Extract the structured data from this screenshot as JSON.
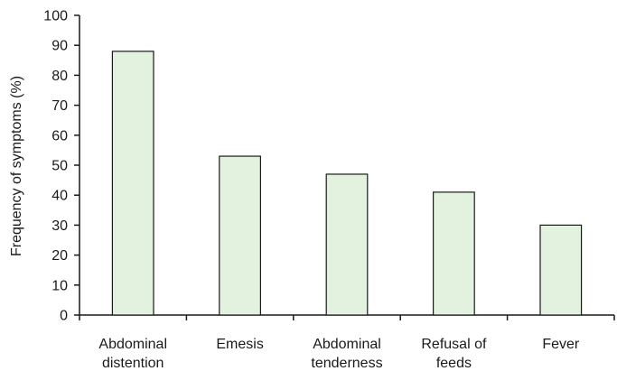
{
  "chart_data": {
    "type": "bar",
    "title": "",
    "xlabel": "",
    "ylabel": "Frequency of symptoms (%)",
    "ylim": [
      0,
      100
    ],
    "yticks": [
      0,
      10,
      20,
      30,
      40,
      50,
      60,
      70,
      80,
      90,
      100
    ],
    "categories": [
      [
        "Abdominal",
        "distention"
      ],
      [
        "Emesis"
      ],
      [
        "Abdominal",
        "tenderness"
      ],
      [
        "Refusal of",
        "feeds"
      ],
      [
        "Fever"
      ]
    ],
    "values": [
      88,
      53,
      47,
      41,
      30
    ],
    "bar_color": "#e3f1df",
    "grid": false,
    "legend": "none"
  }
}
